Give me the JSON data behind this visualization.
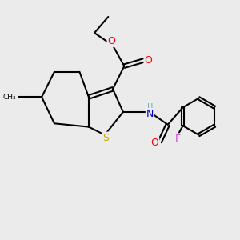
{
  "bg_color": "#ebebeb",
  "atom_colors": {
    "C": "#000000",
    "O": "#ff0000",
    "N": "#0000cc",
    "S": "#ccaa00",
    "F": "#cc44cc",
    "H": "#55aaaa"
  }
}
